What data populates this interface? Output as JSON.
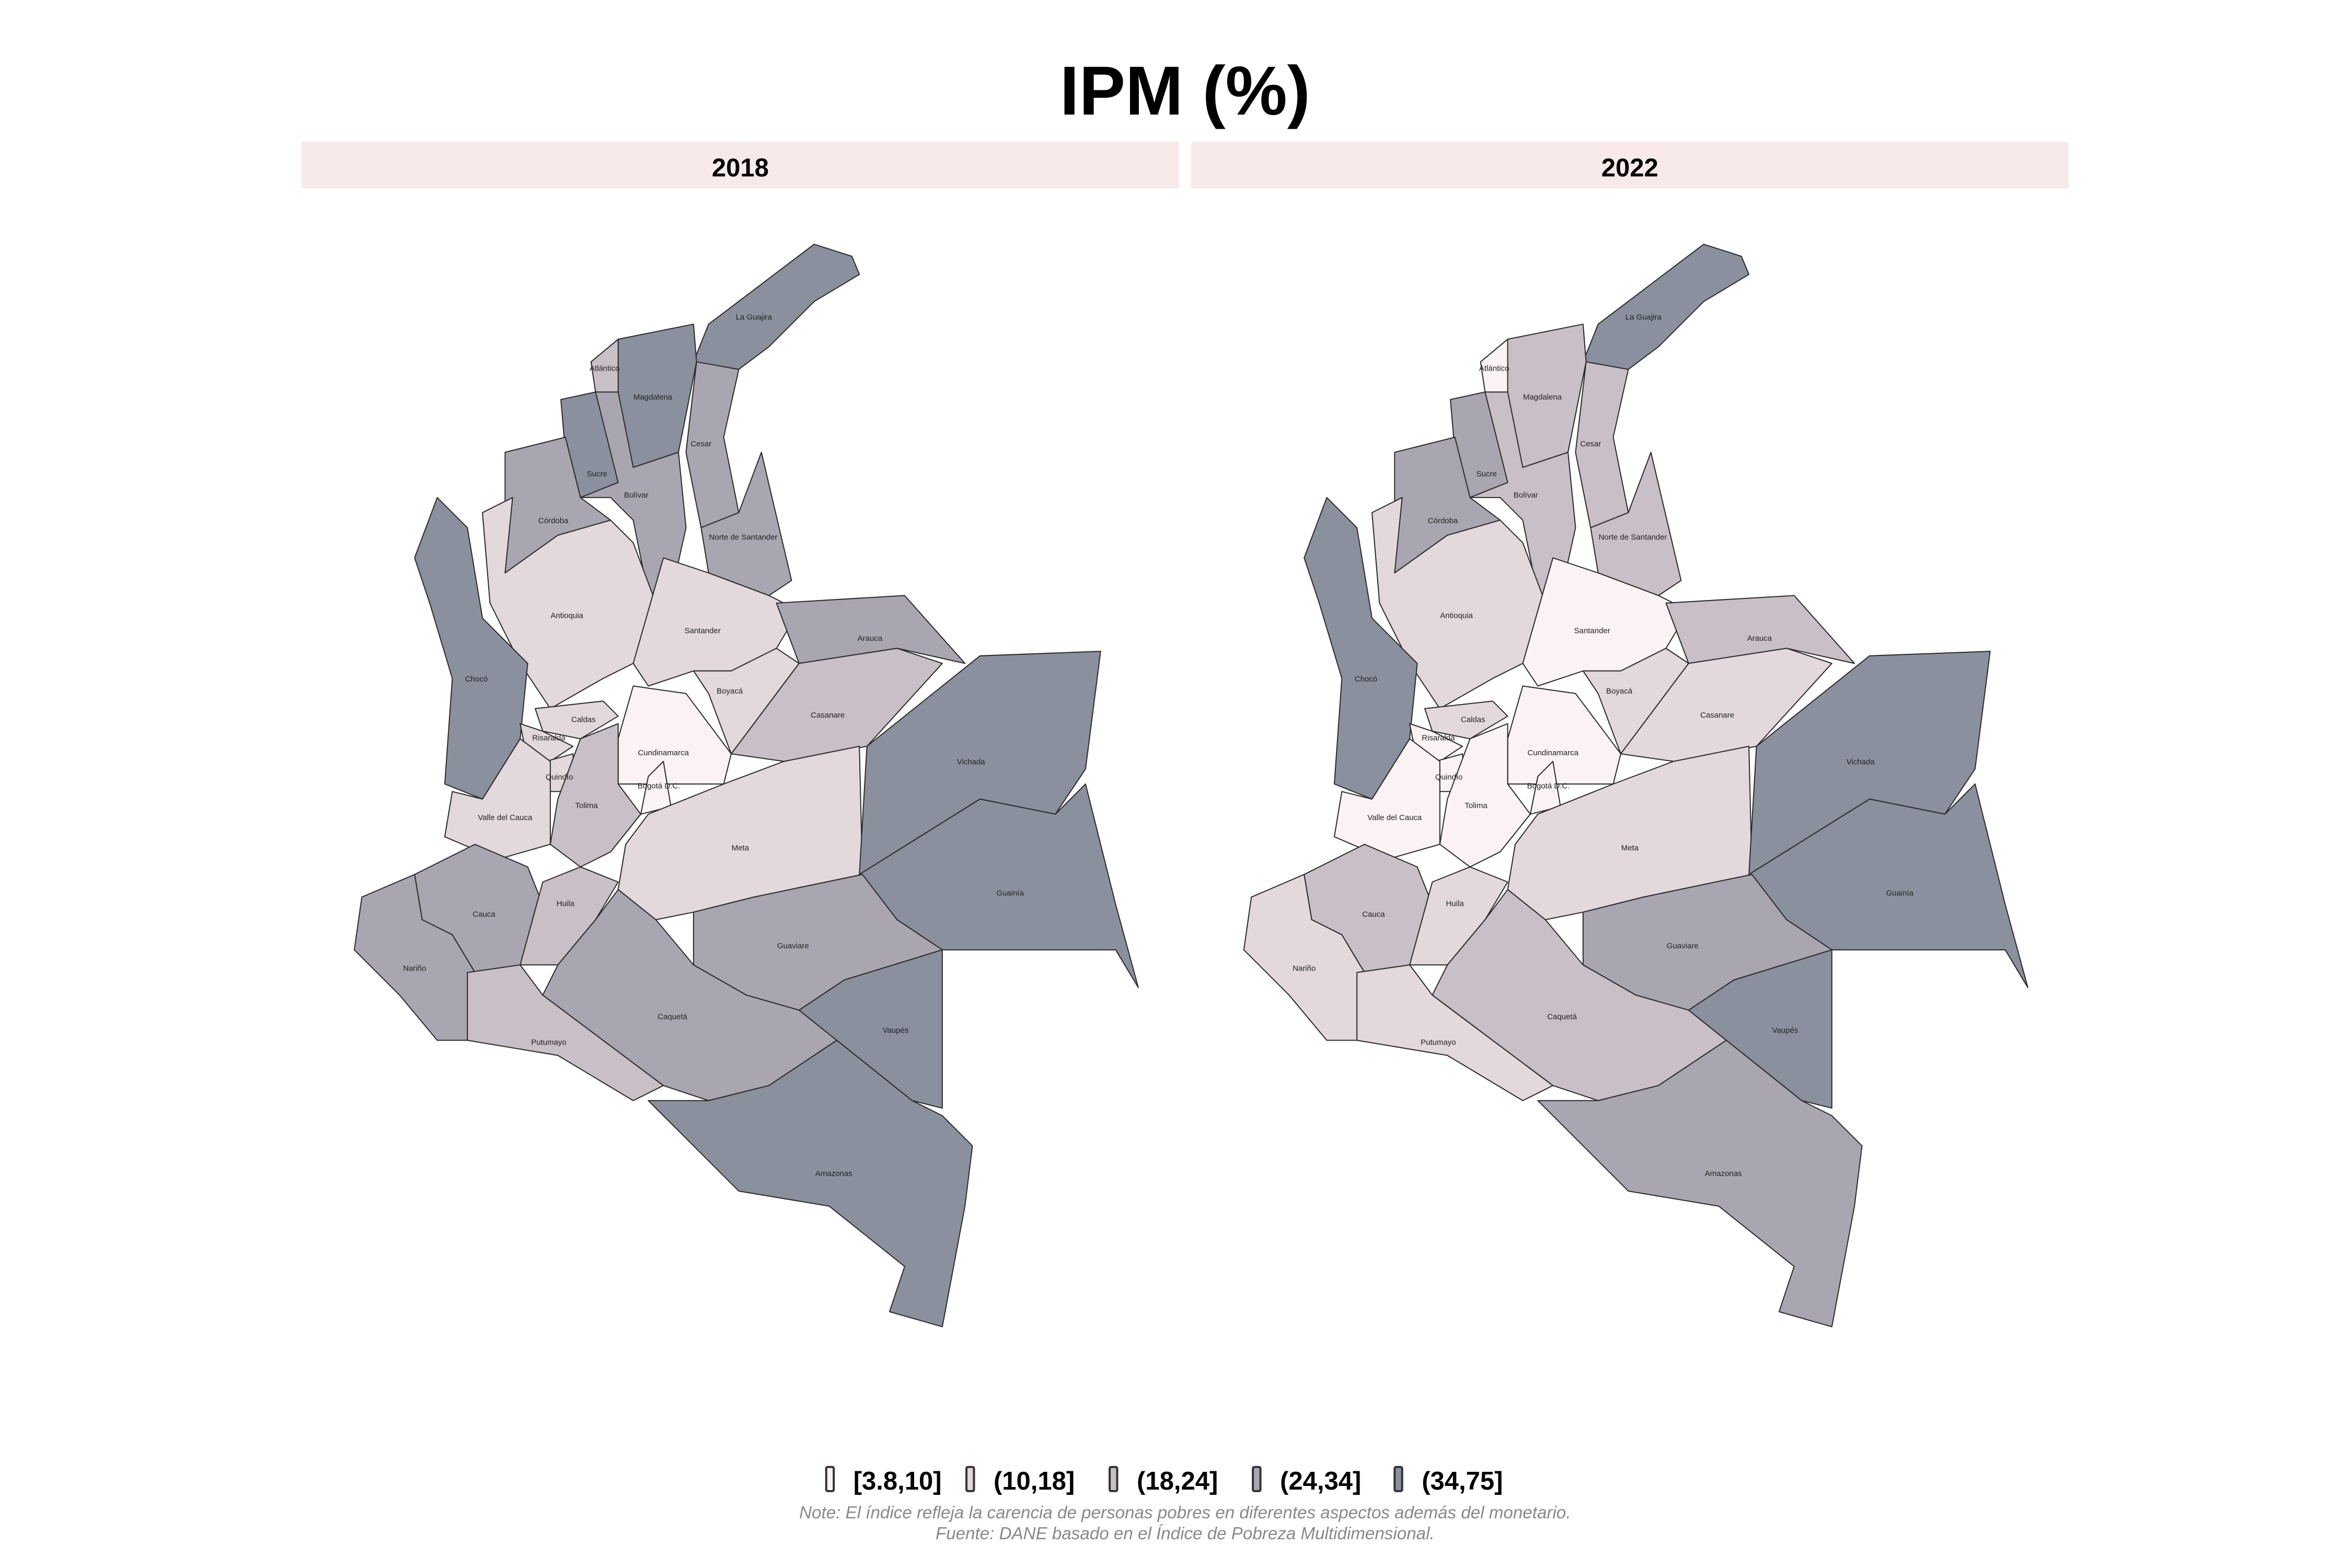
{
  "title": "IPM (%)",
  "panels": [
    "2018",
    "2022"
  ],
  "legend": {
    "classes": [
      "[3.8,10]",
      "(10,18]",
      "(18,24]",
      "(24,34]",
      "(34,75]"
    ],
    "colors": [
      "#fbf3f3",
      "#e3d8dc",
      "#c9bfc6",
      "#a9a6b1",
      "#8a909d"
    ]
  },
  "strip_color": "#f8eaea",
  "note": "Note: El índice refleja la carencia de personas pobres en diferentes aspectos además del monetario.",
  "source": "Fuente: DANE basado en el Índice de Pobreza Multidimensional.",
  "departments": [
    {
      "name": "La Guajira",
      "c2018": 4,
      "c2022": 4
    },
    {
      "name": "Magdalena",
      "c2018": 4,
      "c2022": 2
    },
    {
      "name": "Atlántico",
      "c2018": 2,
      "c2022": 0
    },
    {
      "name": "Cesar",
      "c2018": 3,
      "c2022": 2
    },
    {
      "name": "Sucre",
      "c2018": 4,
      "c2022": 3
    },
    {
      "name": "Bolívar",
      "c2018": 3,
      "c2022": 2
    },
    {
      "name": "Córdoba",
      "c2018": 3,
      "c2022": 3
    },
    {
      "name": "Norte de Santander",
      "c2018": 3,
      "c2022": 2
    },
    {
      "name": "Antioquia",
      "c2018": 1,
      "c2022": 1
    },
    {
      "name": "Santander",
      "c2018": 1,
      "c2022": 0
    },
    {
      "name": "Chocó",
      "c2018": 4,
      "c2022": 4
    },
    {
      "name": "Arauca",
      "c2018": 3,
      "c2022": 2
    },
    {
      "name": "Boyacá",
      "c2018": 1,
      "c2022": 1
    },
    {
      "name": "Casanare",
      "c2018": 2,
      "c2022": 1
    },
    {
      "name": "Caldas",
      "c2018": 1,
      "c2022": 1
    },
    {
      "name": "Risaralda",
      "c2018": 1,
      "c2022": 0
    },
    {
      "name": "Quindío",
      "c2018": 1,
      "c2022": 0
    },
    {
      "name": "Cundinamarca",
      "c2018": 0,
      "c2022": 0
    },
    {
      "name": "Bogotá D.C.",
      "c2018": 0,
      "c2022": 0
    },
    {
      "name": "Tolima",
      "c2018": 2,
      "c2022": 0
    },
    {
      "name": "Valle del Cauca",
      "c2018": 1,
      "c2022": 0
    },
    {
      "name": "Meta",
      "c2018": 1,
      "c2022": 1
    },
    {
      "name": "Vichada",
      "c2018": 4,
      "c2022": 4
    },
    {
      "name": "Guainía",
      "c2018": 4,
      "c2022": 4
    },
    {
      "name": "Guaviare",
      "c2018": 3,
      "c2022": 3
    },
    {
      "name": "Cauca",
      "c2018": 3,
      "c2022": 2
    },
    {
      "name": "Huila",
      "c2018": 2,
      "c2022": 1
    },
    {
      "name": "Nariño",
      "c2018": 3,
      "c2022": 1
    },
    {
      "name": "Putumayo",
      "c2018": 2,
      "c2022": 1
    },
    {
      "name": "Caquetá",
      "c2018": 3,
      "c2022": 2
    },
    {
      "name": "Vaupés",
      "c2018": 4,
      "c2022": 4
    },
    {
      "name": "Amazonas",
      "c2018": 4,
      "c2022": 3
    }
  ]
}
